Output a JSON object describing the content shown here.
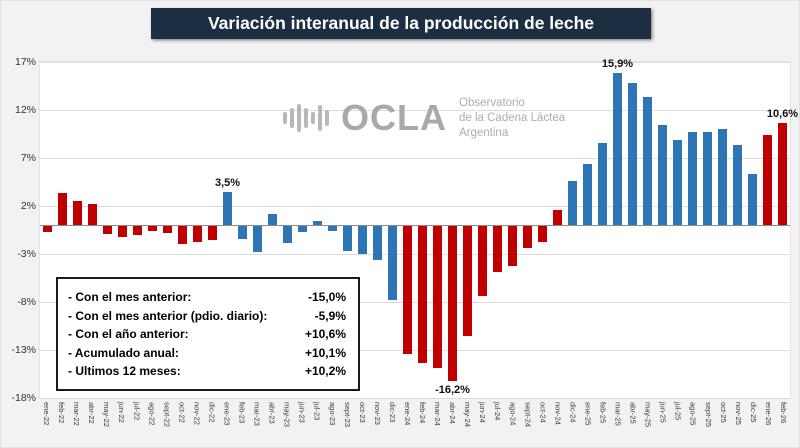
{
  "title": "Variación interanual de la producción de leche",
  "watermark": {
    "name": "OCLA",
    "subtitle_lines": [
      "Observatorio",
      "de la Cadena Láctea",
      "Argentina"
    ]
  },
  "stats_box": {
    "rows": [
      {
        "label": "- Con el mes anterior:",
        "value": "-15,0%"
      },
      {
        "label": "- Con el mes anterior (pdio. diario):",
        "value": "-5,9%"
      },
      {
        "label": "- Con el año anterior:",
        "value": "+10,6%"
      },
      {
        "label": "- Acumulado anual:",
        "value": "+10,1%"
      },
      {
        "label": "- Ultimos 12 meses:",
        "value": "+10,2%"
      }
    ]
  },
  "colors": {
    "red": "#C00000",
    "blue": "#2E75B6",
    "title_bg": "#1C2F42",
    "grid": "#DCDCDC",
    "axis": "#8C8C8C",
    "watermark": "#ABABAB"
  },
  "chart_data": {
    "type": "bar",
    "title": "Variación interanual de la producción de leche",
    "xlabel": "",
    "ylabel": "",
    "ylim": [
      -18,
      17
    ],
    "yticks": [
      17,
      12,
      7,
      2,
      -3,
      -8,
      -13,
      -18
    ],
    "ytick_labels": [
      "17%",
      "12%",
      "7%",
      "2%",
      "-3%",
      "-8%",
      "-13%",
      "-18%"
    ],
    "grid": true,
    "legend": false,
    "categories": [
      "ene-22",
      "feb-22",
      "mar-22",
      "abr-22",
      "may-22",
      "jun-22",
      "jul-22",
      "ago-22",
      "sept-22",
      "oct-22",
      "nov-22",
      "dic-22",
      "ene-23",
      "feb-23",
      "mar-23",
      "abr-23",
      "may-23",
      "jun-23",
      "jul-23",
      "ago-23",
      "sept-23",
      "oct-23",
      "nov-23",
      "dic-23",
      "ene-24",
      "feb-24",
      "mar-24",
      "abr-24",
      "may-24",
      "jun-24",
      "jul-24",
      "ago-24",
      "sept-24",
      "oct-24",
      "nov-24",
      "dic-24",
      "ene-25",
      "feb-25",
      "mar-25",
      "abr-25",
      "may-25",
      "jun-25",
      "jul-25",
      "ago-25",
      "sept-25",
      "oct-25",
      "nov-25",
      "dic-25",
      "ene-26",
      "feb-26"
    ],
    "values": [
      -0.7,
      3.4,
      2.5,
      2.2,
      -0.9,
      -1.2,
      -1.0,
      -0.6,
      -0.8,
      -2.0,
      -1.7,
      -1.5,
      3.5,
      -1.4,
      -2.8,
      1.2,
      -1.9,
      -0.7,
      0.4,
      -0.6,
      -2.7,
      -3.0,
      -3.6,
      -7.8,
      -13.4,
      -14.4,
      -14.9,
      -16.2,
      -11.5,
      -7.4,
      -4.9,
      -4.3,
      -2.4,
      -1.8,
      1.6,
      4.6,
      6.4,
      8.6,
      15.9,
      14.8,
      13.4,
      10.4,
      8.9,
      9.7,
      9.7,
      10.0,
      8.4,
      5.3,
      9.4,
      10.6
    ],
    "bar_colors": [
      "red",
      "red",
      "red",
      "red",
      "red",
      "red",
      "red",
      "red",
      "red",
      "red",
      "red",
      "red",
      "blue",
      "blue",
      "blue",
      "blue",
      "blue",
      "blue",
      "blue",
      "blue",
      "blue",
      "blue",
      "blue",
      "blue",
      "red",
      "red",
      "red",
      "red",
      "red",
      "red",
      "red",
      "red",
      "red",
      "red",
      "red",
      "blue",
      "blue",
      "blue",
      "blue",
      "blue",
      "blue",
      "blue",
      "blue",
      "blue",
      "blue",
      "blue",
      "blue",
      "blue",
      "red",
      "red"
    ],
    "annotations": [
      {
        "category": "ene-23",
        "text": "3,5%",
        "placement": "above"
      },
      {
        "category": "abr-24",
        "text": "-16,2%",
        "placement": "below"
      },
      {
        "category": "mar-25",
        "text": "15,9%",
        "placement": "above"
      },
      {
        "category": "feb-26",
        "text": "10,6%",
        "placement": "above"
      }
    ]
  }
}
